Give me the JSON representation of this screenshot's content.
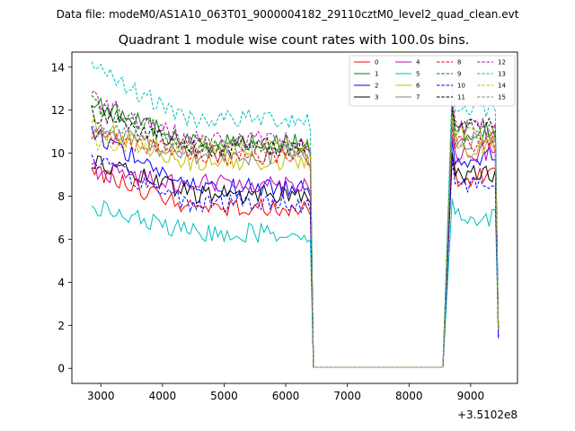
{
  "figure": {
    "suptitle": "Data file: modeM0/AS1A10_063T01_9000004182_29110cztM0_level2_quad_clean.evt",
    "offset_label": "+3.5102e8"
  },
  "chart_data": {
    "type": "line",
    "title": "Quadrant 1 module wise count rates with 100.0s bins.",
    "xlabel": "",
    "ylabel": "",
    "x_offset": 351020000,
    "xlim": [
      2530,
      9760
    ],
    "ylim": [
      -0.7,
      14.7
    ],
    "xticks": [
      3000,
      4000,
      5000,
      6000,
      7000,
      8000,
      9000
    ],
    "yticks": [
      0,
      2,
      4,
      6,
      8,
      10,
      12,
      14
    ],
    "legend_position": "upper right",
    "segment_breaks": {
      "drop_start": 6400,
      "gap_start": 6450,
      "gap_end": 8550,
      "rise_end": 8700,
      "end": 9450,
      "final_values": [
        1.8,
        1.8,
        1.4,
        1.8,
        1.8,
        1.8,
        1.8,
        1.8,
        1.8,
        1.8,
        1.5,
        1.8,
        1.8,
        1.8,
        1.8,
        1.8
      ]
    },
    "series": [
      {
        "name": "0",
        "color": "#ff0000",
        "dashed": false,
        "level": 7.5,
        "start": 9.2,
        "late": 8.9
      },
      {
        "name": "1",
        "color": "#008000",
        "dashed": false,
        "level": 10.5,
        "start": 12.4,
        "late": 11.0
      },
      {
        "name": "2",
        "color": "#0000ff",
        "dashed": false,
        "level": 8.4,
        "start": 11.0,
        "late": 9.8
      },
      {
        "name": "3",
        "color": "#000000",
        "dashed": false,
        "level": 8.1,
        "start": 9.7,
        "late": 9.0
      },
      {
        "name": "4",
        "color": "#bf00bf",
        "dashed": false,
        "level": 8.6,
        "start": 9.2,
        "late": 10.0
      },
      {
        "name": "5",
        "color": "#00bfbf",
        "dashed": false,
        "level": 6.3,
        "start": 7.5,
        "late": 7.0
      },
      {
        "name": "6",
        "color": "#bfbf00",
        "dashed": false,
        "level": 9.6,
        "start": 11.3,
        "late": 10.2
      },
      {
        "name": "7",
        "color": "#808080",
        "dashed": false,
        "level": 9.9,
        "start": 11.2,
        "late": 10.6
      },
      {
        "name": "8",
        "color": "#ff0000",
        "dashed": true,
        "level": 9.9,
        "start": 11.0,
        "late": 10.4
      },
      {
        "name": "9",
        "color": "#008000",
        "dashed": true,
        "level": 10.4,
        "start": 12.3,
        "late": 11.2
      },
      {
        "name": "10",
        "color": "#0000ff",
        "dashed": true,
        "level": 7.7,
        "start": 9.6,
        "late": 8.6
      },
      {
        "name": "11",
        "color": "#000000",
        "dashed": true,
        "level": 10.3,
        "start": 11.9,
        "late": 11.4
      },
      {
        "name": "12",
        "color": "#bf00bf",
        "dashed": true,
        "level": 10.6,
        "start": 12.6,
        "late": 11.2
      },
      {
        "name": "13",
        "color": "#00bfbf",
        "dashed": true,
        "level": 11.6,
        "start": 13.9,
        "late": 12.1
      },
      {
        "name": "14",
        "color": "#bfbf00",
        "dashed": true,
        "level": 10.3,
        "start": 10.6,
        "late": 10.8
      },
      {
        "name": "15",
        "color": "#808080",
        "dashed": true,
        "level": 10.2,
        "start": 11.2,
        "late": 10.5
      }
    ]
  }
}
